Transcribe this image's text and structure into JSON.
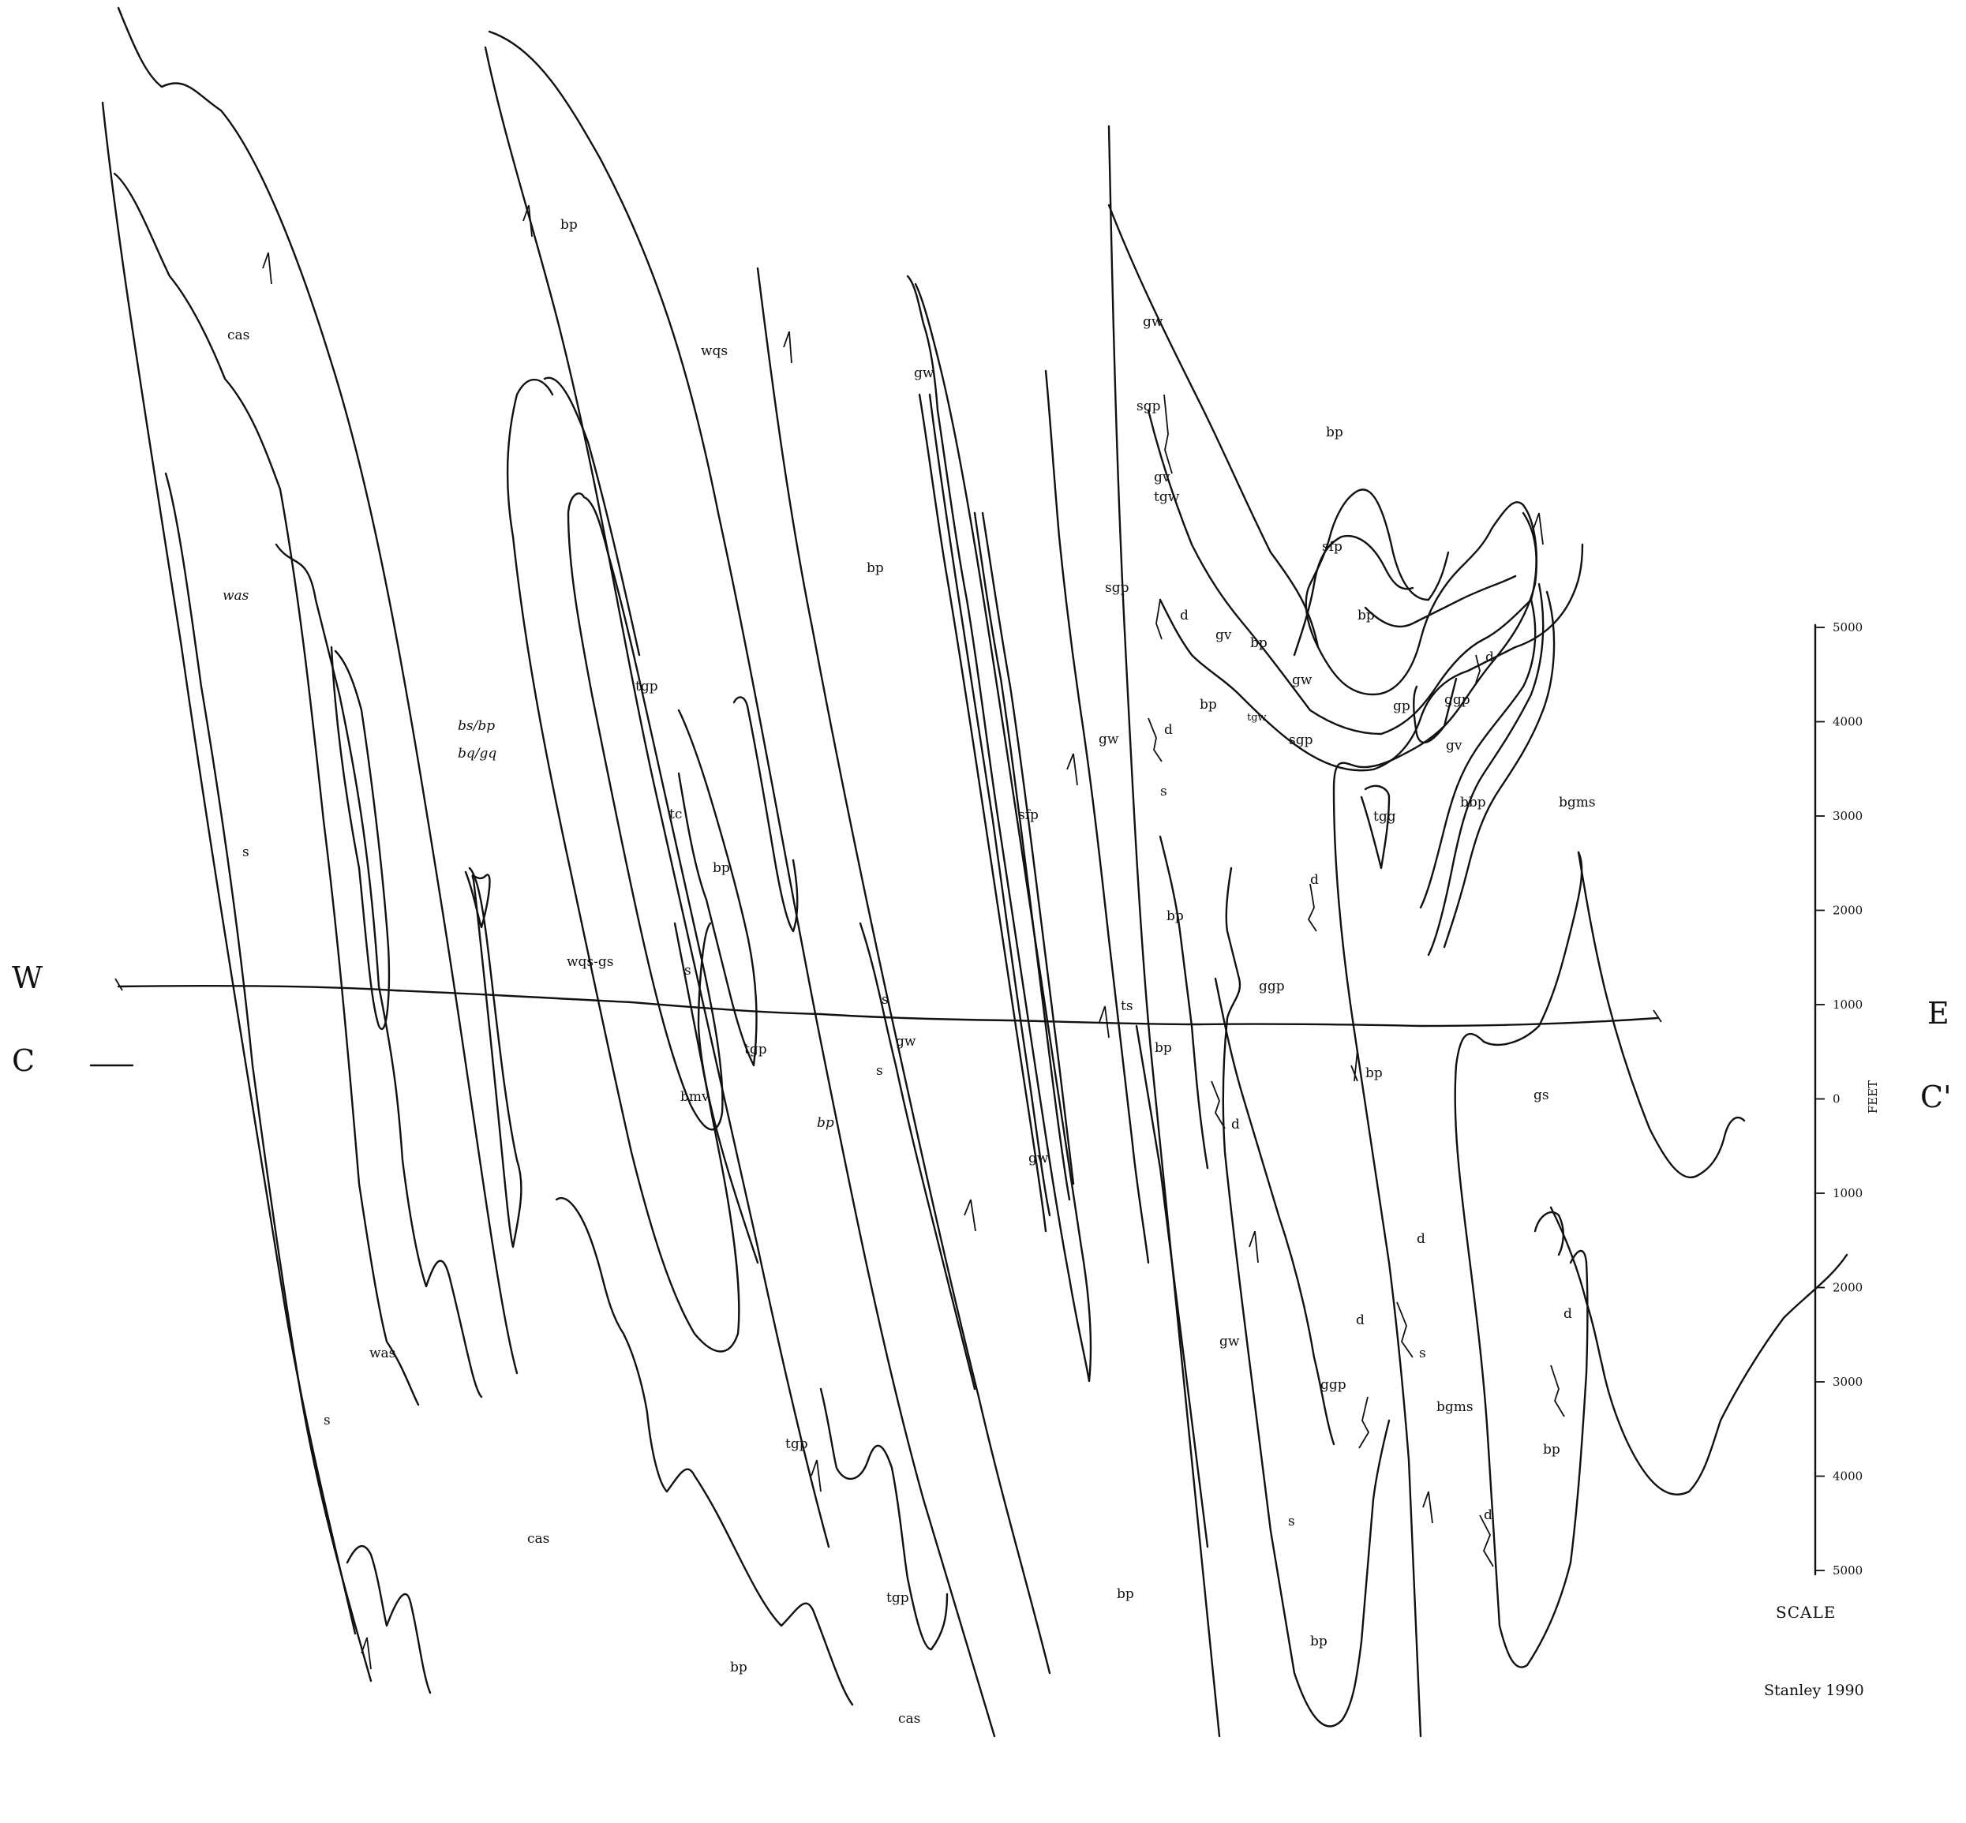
{
  "section": {
    "west": "W",
    "east": "E",
    "start": "C",
    "end": "C'"
  },
  "scale": {
    "unit": "FEET",
    "title": "SCALE",
    "ticks": [
      "5000",
      "4000",
      "3000",
      "2000",
      "1000",
      "0",
      "1000",
      "2000",
      "3000",
      "4000",
      "5000"
    ]
  },
  "credit": "Stanley 1990",
  "labels": [
    "cas",
    "was",
    "s",
    "bs/bp",
    "bq/gq",
    "wqs-gs",
    "bp",
    "wqs",
    "tgp",
    "tc",
    "bp",
    "s",
    "tgp",
    "bmv",
    "bp",
    "s",
    "gw",
    "s",
    "gw",
    "bp",
    "sfp",
    "gw",
    "gw",
    "gw",
    "sgp",
    "gv",
    "tgw",
    "sgp",
    "d",
    "d",
    "s",
    "bp",
    "ts",
    "bp",
    "bp",
    "sfp",
    "bp",
    "gv",
    "bp",
    "gw",
    "tgw",
    "sgp",
    "bp",
    "d",
    "ggp",
    "gp",
    "gv",
    "tgg",
    "bbp",
    "bgms",
    "d",
    "ggp",
    "bp",
    "gs",
    "d",
    "d",
    "d",
    "s",
    "d",
    "gw",
    "ggp",
    "bgms",
    "bp",
    "d",
    "s",
    "bp",
    "bp",
    "was",
    "s",
    "cas",
    "tgp",
    "tgp",
    "bp",
    "cas"
  ]
}
